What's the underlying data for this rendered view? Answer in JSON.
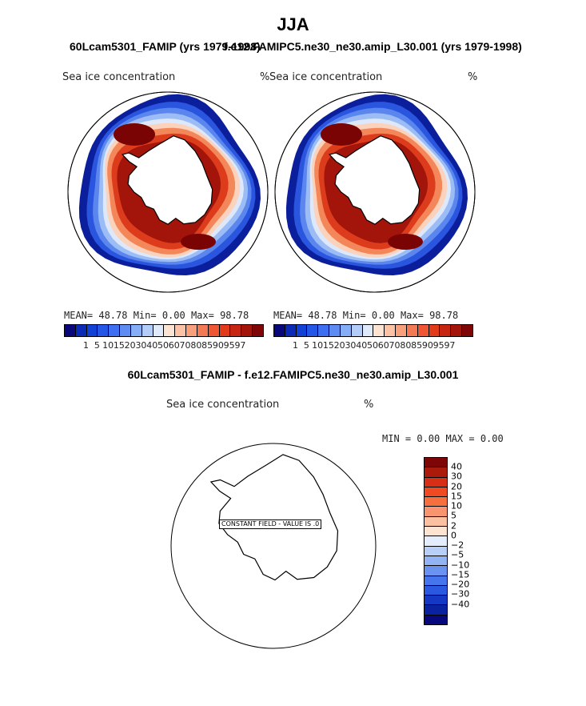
{
  "title": "JJA",
  "panels": [
    {
      "case_title": "60Lcam5301_FAMIP (yrs 1979-1998)",
      "variable": "Sea ice concentration",
      "units": "%",
      "stats": "MEAN=  48.78  Min=   0.00  Max=  98.78"
    },
    {
      "case_title": "f.e12.FAMIPC5.ne30_ne30.amip_L30.001 (yrs 1979-1998)",
      "variable": "Sea ice concentration",
      "units": "%",
      "stats": "MEAN=  48.78  Min=   0.00  Max=  98.78"
    }
  ],
  "abs_colorbar": {
    "colors": [
      "#08087a",
      "#0b2ab5",
      "#1241d6",
      "#2457e6",
      "#3d6ff0",
      "#5e8cf2",
      "#86aef6",
      "#b3cdf8",
      "#dfeafb",
      "#fde3d2",
      "#fbc2a6",
      "#f8a07c",
      "#f47a55",
      "#ef5734",
      "#e13b1c",
      "#c62612",
      "#a3150b",
      "#7e0606"
    ],
    "labels": [
      "1",
      "5",
      "10",
      "15",
      "20",
      "30",
      "40",
      "50",
      "60",
      "70",
      "80",
      "85",
      "90",
      "95",
      "97"
    ]
  },
  "diff": {
    "title": "60Lcam5301_FAMIP - f.e12.FAMIPC5.ne30_ne30.amip_L30.001",
    "variable": "Sea ice concentration",
    "units": "%",
    "stats": "MIN =   0.00 MAX =   0.00",
    "constant_label": "CONSTANT FIELD - VALUE IS .0",
    "colorbar": {
      "colors": [
        "#7e0606",
        "#ac1a0c",
        "#d72e16",
        "#f04a23",
        "#f6703f",
        "#f89570",
        "#fbbfa2",
        "#fde3d2",
        "#e3edfb",
        "#b8d0f8",
        "#92b4f5",
        "#6a93f1",
        "#4674ec",
        "#2a58e0",
        "#1438c3",
        "#0b22a0",
        "#07077e"
      ],
      "labels": [
        "40",
        "30",
        "20",
        "15",
        "10",
        "5",
        "2",
        "0",
        "-2",
        "-5",
        "-10",
        "-15",
        "-20",
        "-30",
        "-40"
      ]
    }
  },
  "map_palette": {
    "edge": "#0b1f9c",
    "blue2": "#2a55df",
    "blue3": "#5a86ee",
    "blue4": "#9cbcf5",
    "pale": "#dde8fa",
    "peach": "#fbd2bb",
    "orange": "#f3875a",
    "red": "#dd3c1c",
    "dark": "#a3150b",
    "maroon": "#7a0404"
  }
}
